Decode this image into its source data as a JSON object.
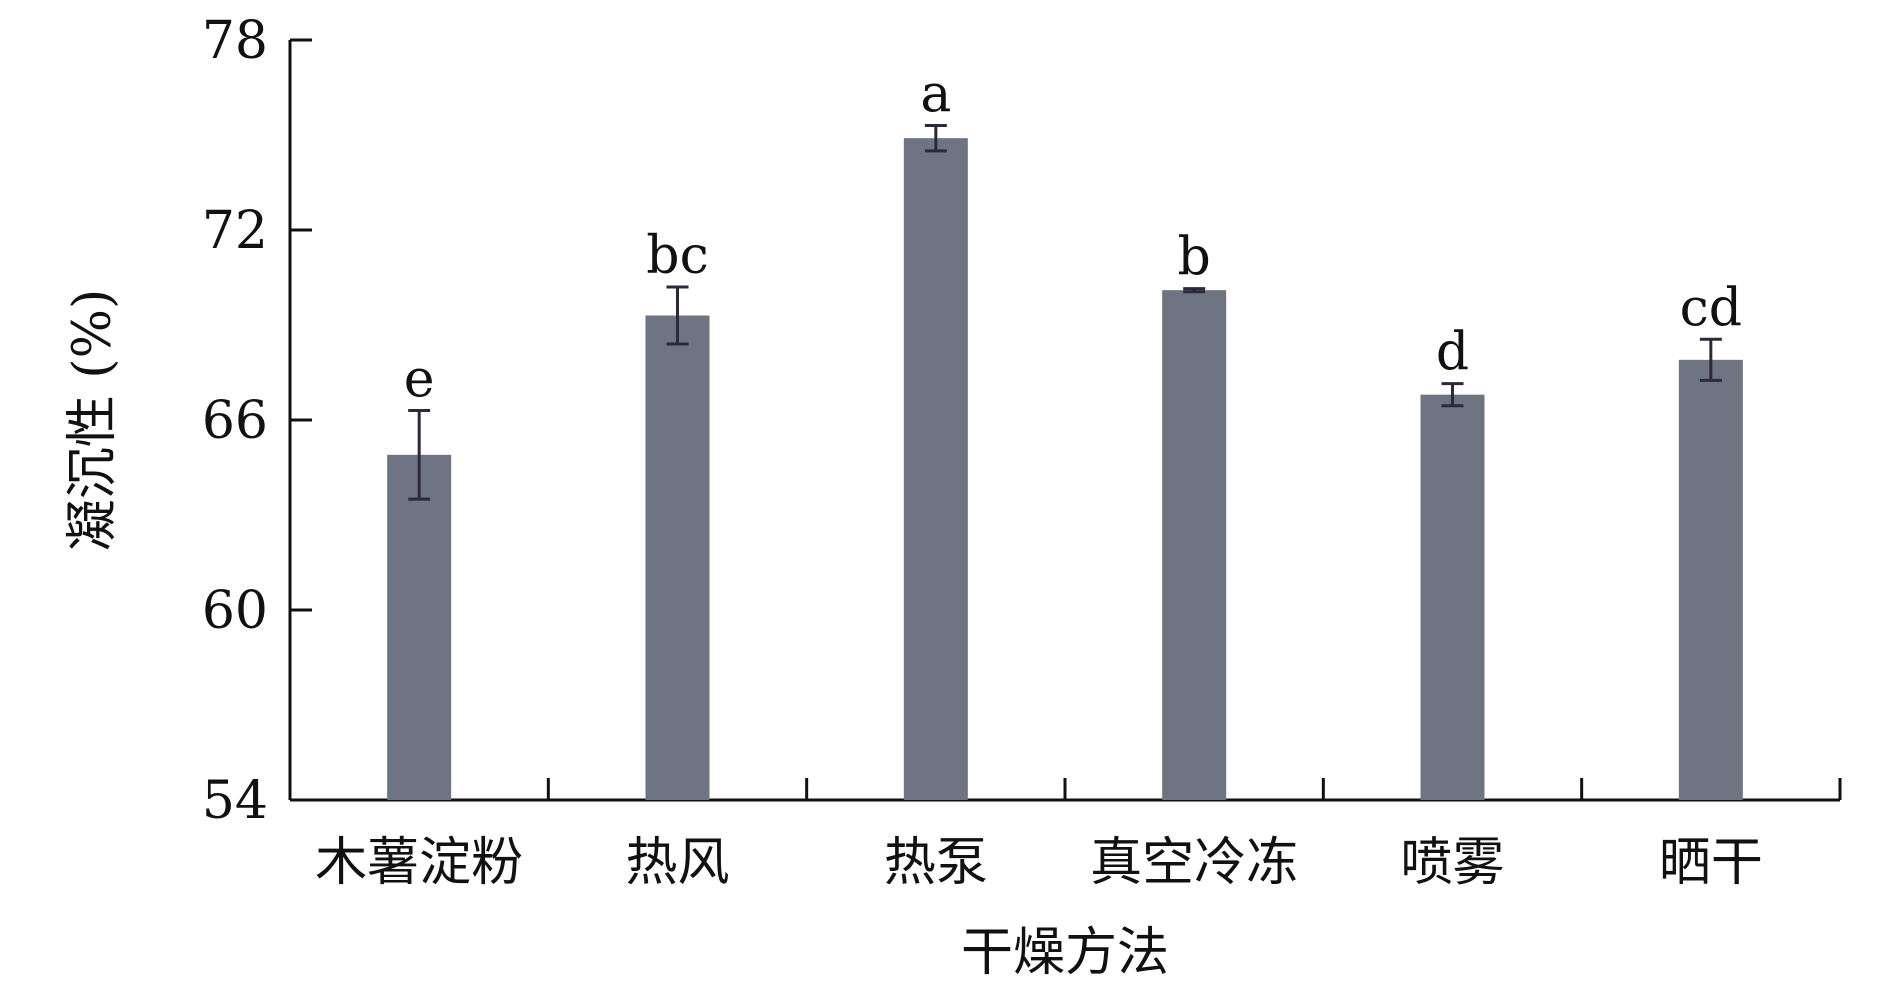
{
  "chart_data": {
    "type": "bar",
    "categories": [
      "木薯淀粉",
      "热风",
      "热泵",
      "真空冷冻",
      "喷雾",
      "晒干"
    ],
    "values": [
      64.9,
      69.3,
      74.9,
      70.1,
      66.8,
      67.9
    ],
    "errors": [
      1.4,
      0.9,
      0.4,
      0.05,
      0.35,
      0.65
    ],
    "significance": [
      "e",
      "bc",
      "a",
      "b",
      "d",
      "cd"
    ],
    "xlabel": "干燥方法",
    "ylabel": "凝沉性 (%)",
    "ylim": [
      54,
      78
    ],
    "yticks": [
      "54",
      "60",
      "66",
      "72",
      "78"
    ],
    "bar_color": "#6f7483",
    "grid": false,
    "legend": "none"
  }
}
